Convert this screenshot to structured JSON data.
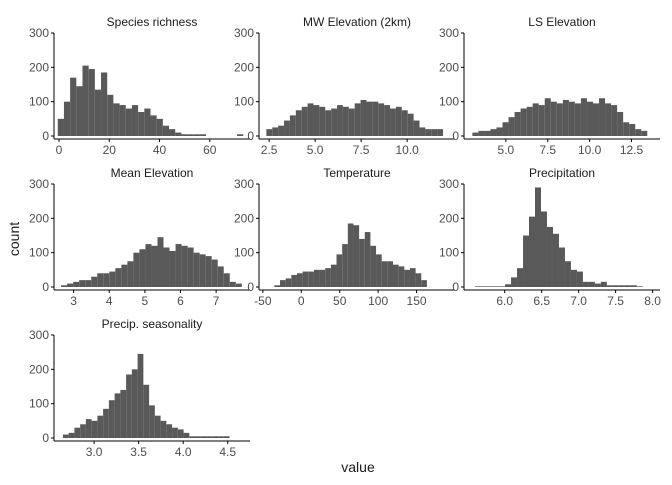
{
  "figure": {
    "xlabel": "value",
    "ylabel": "count",
    "bar_color": "#595959",
    "axis_color": "#000000",
    "text_color": "#1a1a1a"
  },
  "chart_data": [
    {
      "type": "bar",
      "title": "Species richness",
      "xlim": [
        -2,
        76
      ],
      "ylim": [
        0,
        300
      ],
      "xticks": [
        0,
        20,
        40,
        60
      ],
      "yticks": [
        0,
        100,
        200,
        300
      ],
      "bin_start": -0.5,
      "bin_width": 2.46,
      "values": [
        50,
        100,
        170,
        145,
        205,
        195,
        135,
        185,
        120,
        95,
        90,
        80,
        90,
        70,
        80,
        60,
        50,
        30,
        20,
        10,
        5,
        5,
        5,
        5,
        0,
        0,
        0,
        0,
        0,
        5,
        0
      ]
    },
    {
      "type": "bar",
      "title": "MW Elevation (2km)",
      "xlim": [
        1.95,
        12.6
      ],
      "ylim": [
        0,
        300
      ],
      "xticks": [
        2.5,
        5.0,
        7.5,
        10.0
      ],
      "xtick_labels": [
        "2.5",
        "5.0",
        "7.5",
        "10.0"
      ],
      "yticks": [
        0,
        100,
        200,
        300
      ],
      "bin_start": 2.35,
      "bin_width": 0.32,
      "values": [
        20,
        25,
        30,
        45,
        60,
        75,
        85,
        95,
        90,
        85,
        75,
        80,
        90,
        85,
        80,
        95,
        105,
        100,
        100,
        95,
        90,
        80,
        85,
        75,
        65,
        45,
        25,
        20,
        20,
        20
      ]
    },
    {
      "type": "bar",
      "title": "LS Elevation",
      "xlim": [
        2.5,
        14.2
      ],
      "ylim": [
        0,
        300
      ],
      "xticks": [
        5.0,
        7.5,
        10.0,
        12.5
      ],
      "xtick_labels": [
        "5.0",
        "7.5",
        "10.0",
        "12.5"
      ],
      "yticks": [
        0,
        100,
        200,
        300
      ],
      "bin_start": 3.0,
      "bin_width": 0.36,
      "values": [
        10,
        15,
        15,
        20,
        25,
        40,
        55,
        70,
        80,
        85,
        95,
        90,
        110,
        100,
        95,
        105,
        100,
        95,
        110,
        100,
        95,
        110,
        95,
        90,
        70,
        40,
        35,
        20,
        15
      ]
    },
    {
      "type": "bar",
      "title": "Mean Elevation",
      "xlim": [
        2.45,
        7.95
      ],
      "ylim": [
        0,
        300
      ],
      "xticks": [
        3,
        4,
        5,
        6,
        7
      ],
      "yticks": [
        0,
        100,
        200,
        300
      ],
      "bin_start": 2.65,
      "bin_width": 0.169,
      "values": [
        5,
        10,
        15,
        20,
        20,
        30,
        40,
        40,
        45,
        55,
        65,
        75,
        100,
        110,
        125,
        120,
        145,
        115,
        105,
        125,
        120,
        115,
        100,
        95,
        90,
        80,
        60,
        40,
        15,
        10
      ]
    },
    {
      "type": "bar",
      "title": "Temperature",
      "xlim": [
        -55,
        200
      ],
      "ylim": [
        0,
        300
      ],
      "xticks": [
        -50,
        0,
        50,
        100,
        150
      ],
      "yticks": [
        0,
        100,
        200,
        300
      ],
      "bin_start": -35,
      "bin_width": 7.35,
      "values": [
        5,
        20,
        25,
        35,
        40,
        45,
        45,
        50,
        50,
        55,
        65,
        95,
        125,
        185,
        180,
        140,
        160,
        120,
        95,
        75,
        75,
        65,
        60,
        50,
        55,
        40,
        20
      ]
    },
    {
      "type": "bar",
      "title": "Precipitation",
      "xlim": [
        5.45,
        8.1
      ],
      "ylim": [
        0,
        300
      ],
      "xticks": [
        6.0,
        6.5,
        7.0,
        7.5,
        8.0
      ],
      "xtick_labels": [
        "6.0",
        "6.5",
        "7.0",
        "7.5",
        "8.0"
      ],
      "yticks": [
        0,
        100,
        200,
        300
      ],
      "bin_start": 5.6,
      "bin_width": 0.081,
      "values": [
        2,
        2,
        2,
        2,
        2,
        8,
        28,
        55,
        150,
        205,
        290,
        220,
        175,
        155,
        115,
        75,
        50,
        45,
        15,
        15,
        10,
        15,
        5,
        5,
        5,
        5,
        5,
        2
      ]
    },
    {
      "type": "bar",
      "title": "Precip. seasonality",
      "xlim": [
        2.55,
        4.75
      ],
      "ylim": [
        0,
        300
      ],
      "xticks": [
        3.0,
        3.5,
        4.0,
        4.5
      ],
      "xtick_labels": [
        "3.0",
        "3.5",
        "4.0",
        "4.5"
      ],
      "yticks": [
        0,
        100,
        200,
        300
      ],
      "bin_start": 2.65,
      "bin_width": 0.0645,
      "values": [
        10,
        15,
        30,
        40,
        55,
        50,
        65,
        85,
        110,
        130,
        140,
        185,
        200,
        245,
        155,
        95,
        65,
        50,
        40,
        30,
        25,
        15,
        5,
        5,
        5,
        5,
        5,
        5,
        5
      ]
    }
  ]
}
